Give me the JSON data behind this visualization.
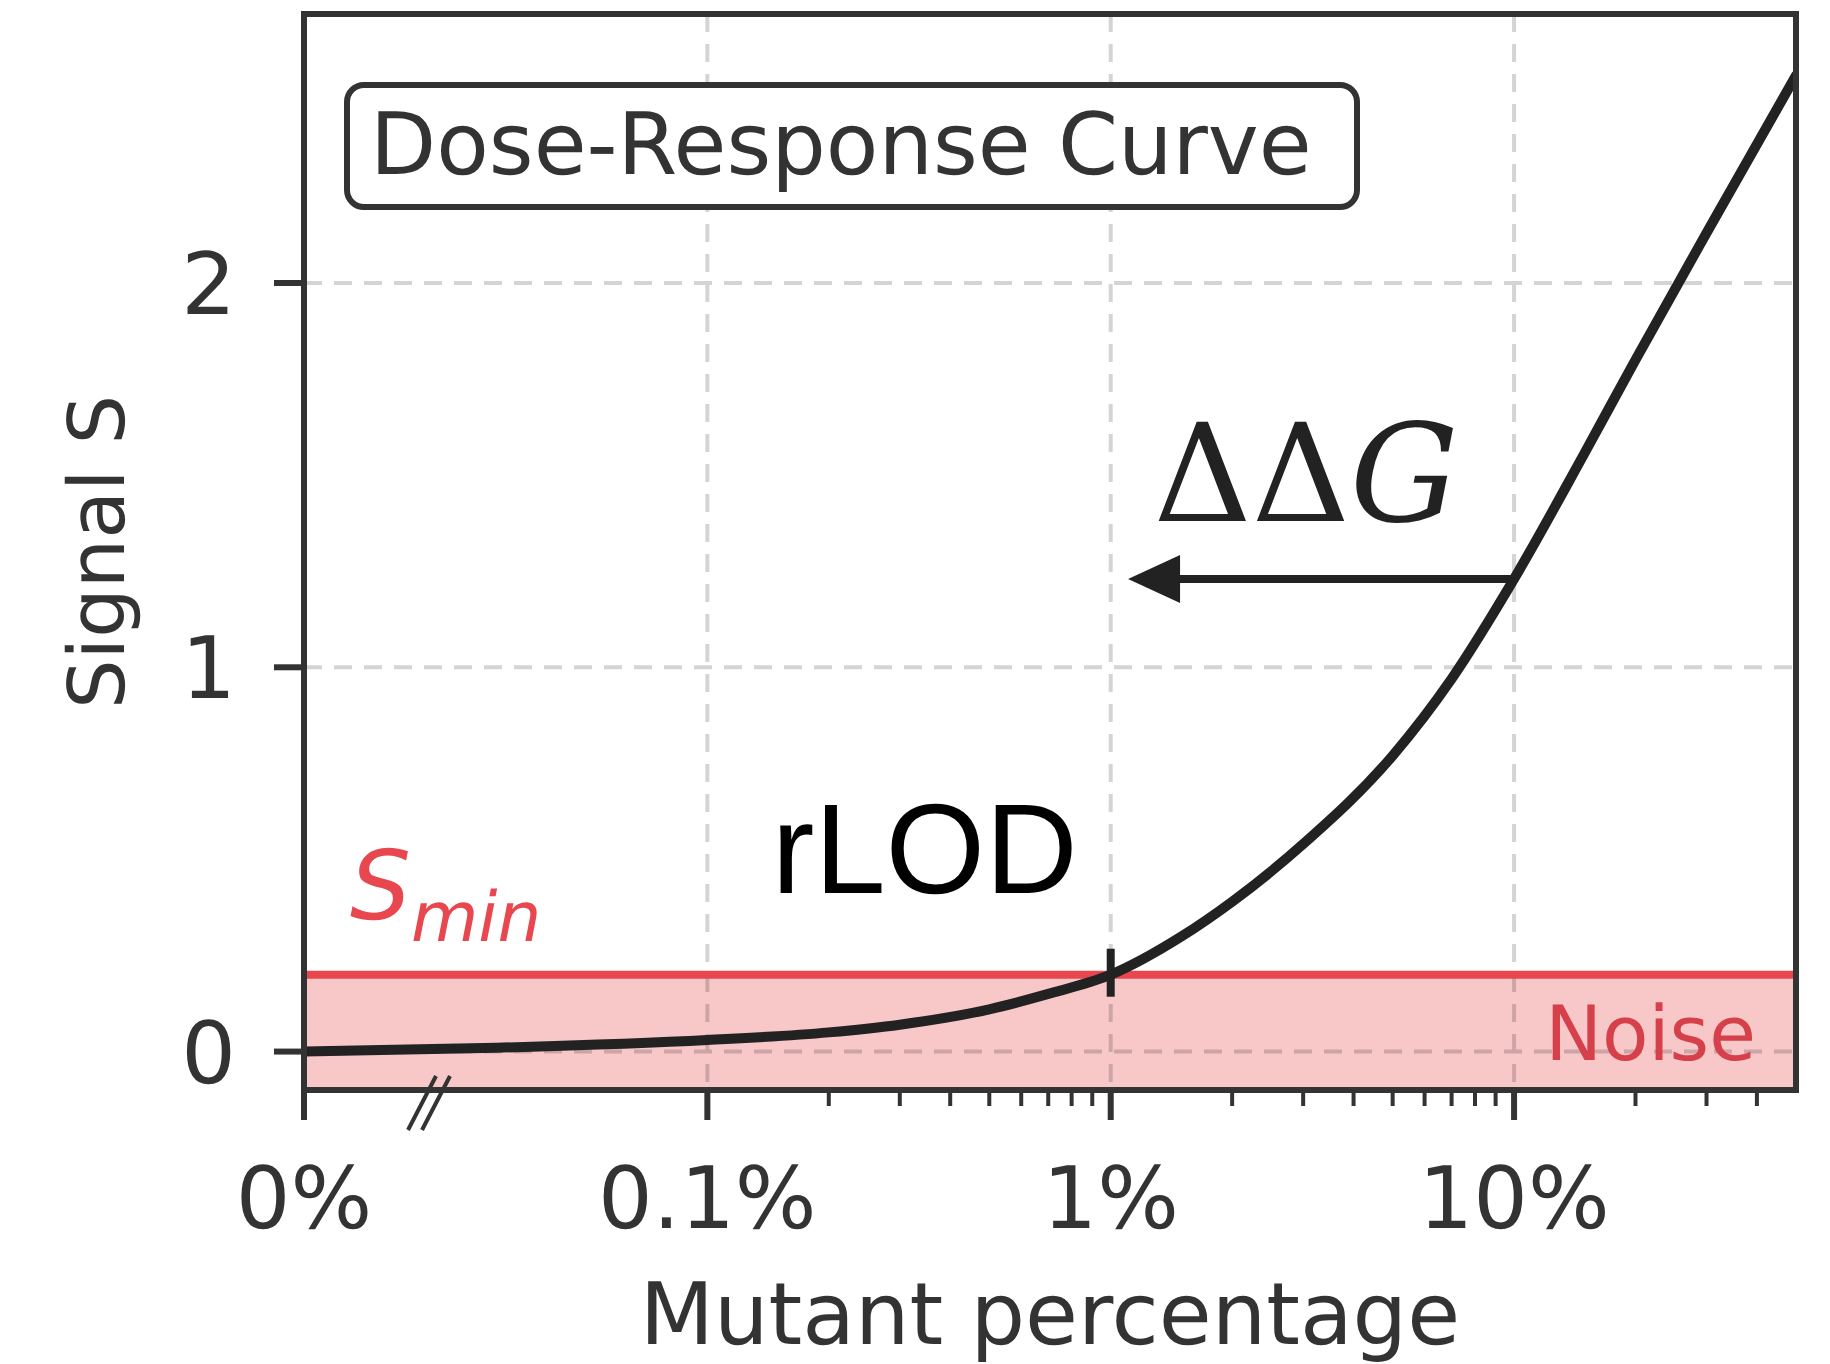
{
  "chart_data": {
    "type": "line",
    "xlabel": "Mutant percentage",
    "ylabel": "Signal S",
    "x": [
      0.01,
      0.03,
      0.1,
      0.2,
      0.3,
      0.5,
      0.7,
      1,
      1.5,
      2,
      3,
      5,
      7,
      10,
      15,
      20,
      30,
      50
    ],
    "series": [
      {
        "color": "#222222",
        "values": [
          0,
          0.01,
          0.03,
          0.05,
          0.07,
          0.11,
          0.15,
          0.2,
          0.3,
          0.39,
          0.54,
          0.77,
          0.97,
          1.23,
          1.56,
          1.8,
          2.13,
          2.54
        ]
      }
    ],
    "log": "x",
    "xlim": [
      0.01,
      50
    ],
    "xticks": [
      {
        "value": 0.01,
        "label": "0%"
      },
      {
        "value": 0.1,
        "label": "0.1%"
      },
      {
        "value": 0.2,
        "label": null
      },
      {
        "value": 0.3,
        "label": null
      },
      {
        "value": 0.4,
        "label": null
      },
      {
        "value": 0.5,
        "label": null
      },
      {
        "value": 0.6,
        "label": null
      },
      {
        "value": 0.7,
        "label": null
      },
      {
        "value": 0.8,
        "label": null
      },
      {
        "value": 0.9,
        "label": null
      },
      {
        "value": 1,
        "label": "1%"
      },
      {
        "value": 2,
        "label": null
      },
      {
        "value": 3,
        "label": null
      },
      {
        "value": 4,
        "label": null
      },
      {
        "value": 5,
        "label": null
      },
      {
        "value": 6,
        "label": null
      },
      {
        "value": 7,
        "label": null
      },
      {
        "value": 8,
        "label": null
      },
      {
        "value": 9,
        "label": null
      },
      {
        "value": 10,
        "label": "10%"
      },
      {
        "value": 20,
        "label": null
      },
      {
        "value": 30,
        "label": null
      },
      {
        "value": 40,
        "label": null
      }
    ],
    "ylim": [
      -0.1,
      2.7
    ],
    "yticks": [
      0,
      1,
      2
    ],
    "grid": true,
    "marker": "none",
    "line_style": "solid",
    "ref_lines": [
      {
        "axis": "y",
        "value": 0.2,
        "label": "S$_{min}$",
        "color": "#e8474f"
      }
    ],
    "bands": [
      {
        "axis": "y",
        "from": -0.1,
        "to": 0.2,
        "label": "Noise",
        "color": "#f8c7c8"
      }
    ],
    "annotations": [
      "Dose-Response Curve",
      {
        "text": "rLOD",
        "x": 1,
        "y": 0.2
      },
      {
        "text": "ΔΔG",
        "x": 10,
        "y": 1.23
      }
    ]
  }
}
